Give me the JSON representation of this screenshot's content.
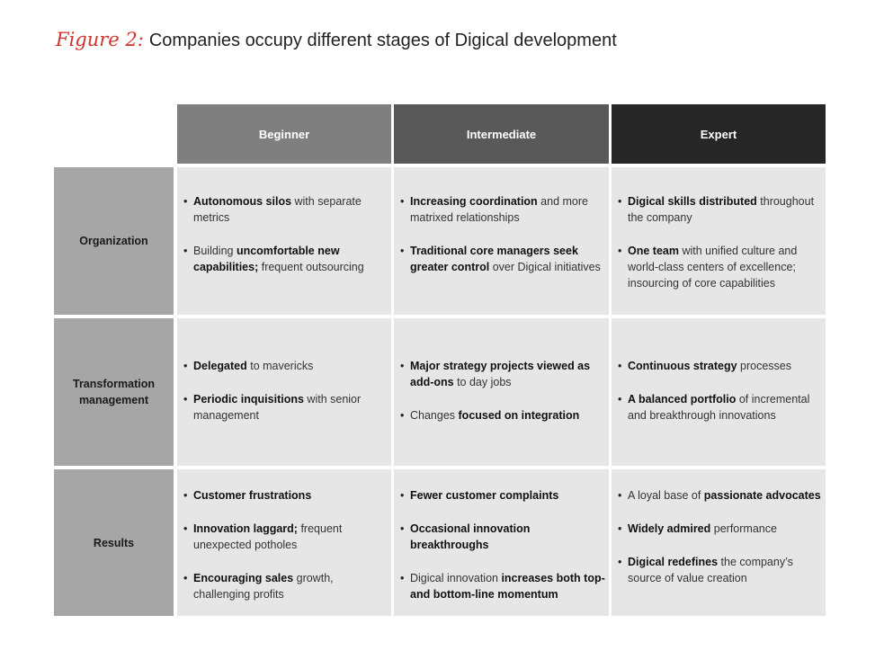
{
  "title": {
    "figure_label": "Figure 2:",
    "text": "Companies occupy different stages of Digical development"
  },
  "columns": [
    {
      "label": "Beginner",
      "color": "#7f7f7f"
    },
    {
      "label": "Intermediate",
      "color": "#595959"
    },
    {
      "label": "Expert",
      "color": "#262626"
    }
  ],
  "rows": [
    {
      "label": "Organization",
      "cells": [
        [
          [
            {
              "b": "Autonomous silos"
            },
            {
              "t": " with separate metrics"
            }
          ],
          [
            {
              "t": "Building "
            },
            {
              "b": "uncomfortable new capabilities;"
            },
            {
              "t": " frequent outsourcing"
            }
          ]
        ],
        [
          [
            {
              "b": "Increasing coordination"
            },
            {
              "t": " and more matrixed relationships"
            }
          ],
          [
            {
              "b": "Traditional core managers seek greater control"
            },
            {
              "t": " over Digical initiatives"
            }
          ]
        ],
        [
          [
            {
              "b": "Digical skills distributed"
            },
            {
              "t": " throughout the company"
            }
          ],
          [
            {
              "b": "One team"
            },
            {
              "t": " with unified culture and world-class centers of excellence; insourcing of core capabilities"
            }
          ]
        ]
      ]
    },
    {
      "label": "Transformation management",
      "cells": [
        [
          [
            {
              "b": "Delegated"
            },
            {
              "t": " to mavericks"
            }
          ],
          [
            {
              "b": "Periodic inquisitions"
            },
            {
              "t": " with senior management"
            }
          ]
        ],
        [
          [
            {
              "b": "Major strategy projects viewed as add-ons"
            },
            {
              "t": " to day jobs"
            }
          ],
          [
            {
              "t": "Changes "
            },
            {
              "b": "focused on integration"
            }
          ]
        ],
        [
          [
            {
              "b": "Continuous strategy"
            },
            {
              "t": " processes"
            }
          ],
          [
            {
              "b": "A balanced portfolio"
            },
            {
              "t": " of incremental and breakthrough innovations"
            }
          ]
        ]
      ]
    },
    {
      "label": "Results",
      "cells": [
        [
          [
            {
              "b": "Customer frustrations"
            }
          ],
          [
            {
              "b": "Innovation laggard;"
            },
            {
              "t": " frequent unexpected potholes"
            }
          ],
          [
            {
              "b": "Encouraging sales"
            },
            {
              "t": " growth, challenging profits"
            }
          ]
        ],
        [
          [
            {
              "b": "Fewer customer complaints"
            }
          ],
          [
            {
              "b": "Occasional innovation breakthroughs"
            }
          ],
          [
            {
              "t": "Digical innovation "
            },
            {
              "b": "increases both top- and bottom-line momentum"
            }
          ]
        ],
        [
          [
            {
              "t": "A loyal base of "
            },
            {
              "b": "passionate advocates"
            }
          ],
          [
            {
              "b": "Widely admired"
            },
            {
              "t": " performance"
            }
          ],
          [
            {
              "b": "Digical redefines"
            },
            {
              "t": " the company’s source of value creation"
            }
          ]
        ]
      ]
    }
  ]
}
